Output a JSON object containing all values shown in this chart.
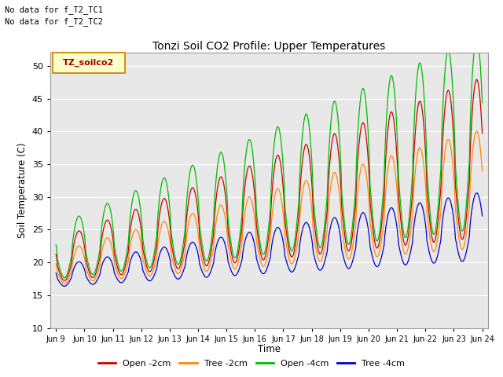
{
  "title": "Tonzi Soil CO2 Profile: Upper Temperatures",
  "xlabel": "Time",
  "ylabel": "Soil Temperature (C)",
  "ylim": [
    10,
    52
  ],
  "yticks": [
    10,
    15,
    20,
    25,
    30,
    35,
    40,
    45,
    50
  ],
  "annotations": [
    "No data for f_T2_TC1",
    "No data for f_T2_TC2"
  ],
  "legend_label": "TZ_soilco2",
  "series_labels": [
    "Open -2cm",
    "Tree -2cm",
    "Open -4cm",
    "Tree -4cm"
  ],
  "series_colors": [
    "#cc0000",
    "#ff8800",
    "#00bb00",
    "#0000cc"
  ],
  "x_tick_labels": [
    "Jun 9",
    "Jun 10",
    "Jun 11",
    "Jun 12",
    "Jun 13",
    "Jun 14",
    "Jun 15",
    "Jun 16",
    "Jun 17",
    "Jun 18",
    "Jun 19",
    "Jun 20",
    "Jun 21",
    "Jun 22",
    "Jun 23",
    "Jun 24"
  ],
  "bg_color": "#e8e8e8",
  "box_color": "#ffffcc",
  "n_days": 15,
  "pts_per_day": 96
}
